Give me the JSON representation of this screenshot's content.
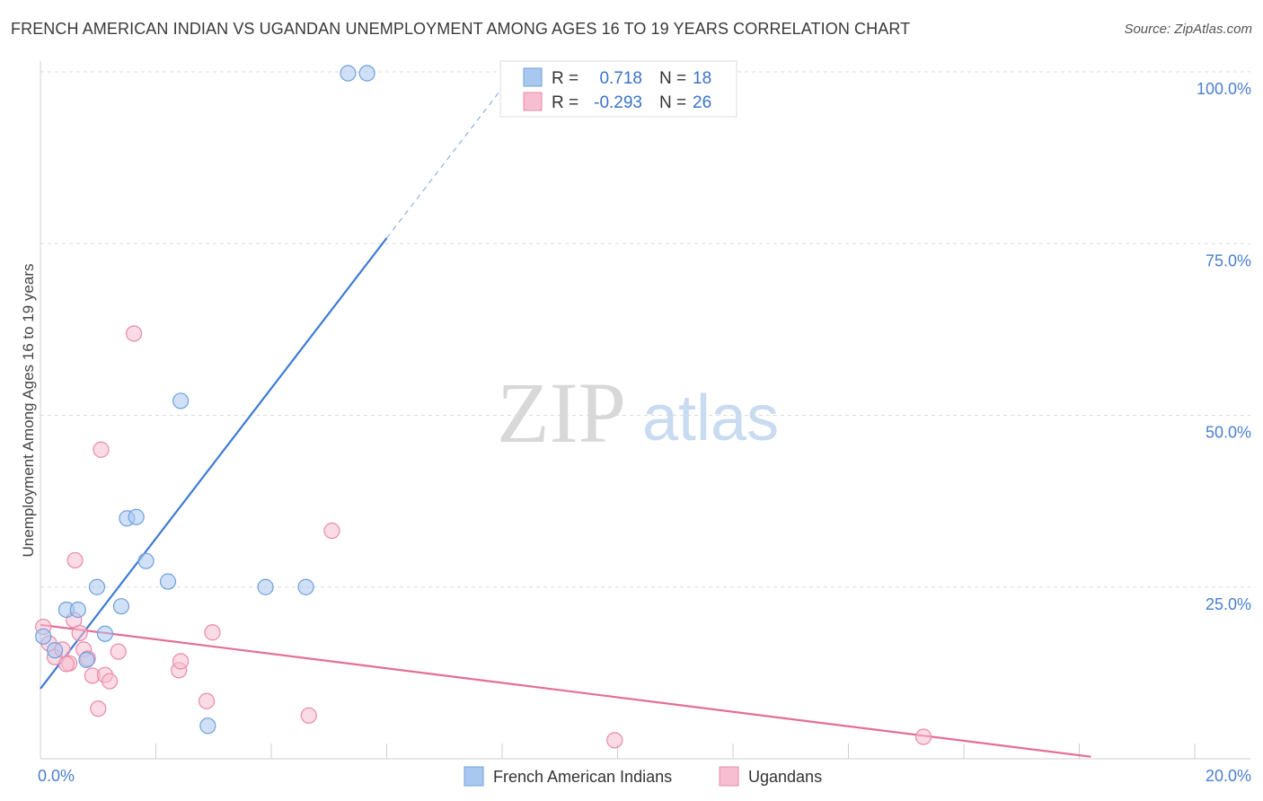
{
  "title": "FRENCH AMERICAN INDIAN VS UGANDAN UNEMPLOYMENT AMONG AGES 16 TO 19 YEARS CORRELATION CHART",
  "source": "Source: ZipAtlas.com",
  "watermark": {
    "zip": "ZIP",
    "atlas": "atlas"
  },
  "colors": {
    "blue_fill": "#a9c8f0",
    "blue_stroke": "#6f9fdc",
    "blue_line": "#3d7bd4",
    "pink_fill": "#f7bdd0",
    "pink_stroke": "#e88aa8",
    "pink_line": "#e46d98",
    "tick_text": "#4a7fd0"
  },
  "stats_legend": [
    {
      "r_label": "R =",
      "r_value": "0.718",
      "n_label": "N =",
      "n_value": "18"
    },
    {
      "r_label": "R =",
      "r_value": "-0.293",
      "n_label": "N =",
      "n_value": "26"
    }
  ],
  "chart_data": {
    "type": "scatter",
    "title": "FRENCH AMERICAN INDIAN VS UGANDAN UNEMPLOYMENT AMONG AGES 16 TO 19 YEARS CORRELATION CHART",
    "xlabel": "",
    "ylabel": "Unemployment Among Ages 16 to 19 years",
    "xlim": [
      0,
      20
    ],
    "ylim": [
      0,
      100
    ],
    "x_tick_labels": [
      "0.0%",
      "20.0%"
    ],
    "y_tick_labels": [
      "100.0%",
      "75.0%",
      "50.0%",
      "25.0%"
    ],
    "y_ticks": [
      100,
      75,
      50,
      25
    ],
    "x_minor_ticks": [
      0,
      2,
      4,
      6,
      8,
      10,
      12,
      14,
      16,
      18,
      20
    ],
    "legend": [
      "French American Indians",
      "Ugandans"
    ],
    "series": [
      {
        "name": "French American Indians",
        "r": 0.718,
        "n": 18,
        "trend": {
          "x0": 0.0,
          "y0": 10.2,
          "x1": 6.0,
          "y1": 75.8,
          "dash_to_x": 8.4,
          "dash_to_y": 102.0
        },
        "points": [
          {
            "x": 0.05,
            "y": 17.8
          },
          {
            "x": 0.25,
            "y": 15.8
          },
          {
            "x": 0.45,
            "y": 21.7
          },
          {
            "x": 0.65,
            "y": 21.7
          },
          {
            "x": 0.8,
            "y": 14.4
          },
          {
            "x": 0.98,
            "y": 25.0
          },
          {
            "x": 1.12,
            "y": 18.2
          },
          {
            "x": 1.4,
            "y": 22.2
          },
          {
            "x": 1.5,
            "y": 35.0
          },
          {
            "x": 1.66,
            "y": 35.2
          },
          {
            "x": 1.83,
            "y": 28.8
          },
          {
            "x": 2.21,
            "y": 25.8
          },
          {
            "x": 2.43,
            "y": 52.1
          },
          {
            "x": 2.9,
            "y": 4.8
          },
          {
            "x": 3.9,
            "y": 25.0
          },
          {
            "x": 4.6,
            "y": 25.0
          },
          {
            "x": 5.33,
            "y": 99.8
          },
          {
            "x": 5.66,
            "y": 99.8
          }
        ]
      },
      {
        "name": "Ugandans",
        "r": -0.293,
        "n": 26,
        "trend": {
          "x0": 0.0,
          "y0": 19.5,
          "x1": 18.2,
          "y1": 0.3
        },
        "points": [
          {
            "x": 0.05,
            "y": 19.2
          },
          {
            "x": 0.15,
            "y": 16.8
          },
          {
            "x": 0.25,
            "y": 14.8
          },
          {
            "x": 0.38,
            "y": 15.9
          },
          {
            "x": 0.5,
            "y": 13.9
          },
          {
            "x": 0.45,
            "y": 13.8
          },
          {
            "x": 0.58,
            "y": 20.2
          },
          {
            "x": 0.6,
            "y": 28.9
          },
          {
            "x": 0.68,
            "y": 18.3
          },
          {
            "x": 0.75,
            "y": 15.9
          },
          {
            "x": 0.82,
            "y": 14.6
          },
          {
            "x": 0.9,
            "y": 12.1
          },
          {
            "x": 1.0,
            "y": 7.3
          },
          {
            "x": 1.05,
            "y": 45.0
          },
          {
            "x": 1.12,
            "y": 12.2
          },
          {
            "x": 1.2,
            "y": 11.3
          },
          {
            "x": 1.35,
            "y": 15.6
          },
          {
            "x": 1.62,
            "y": 61.9
          },
          {
            "x": 2.4,
            "y": 12.9
          },
          {
            "x": 2.43,
            "y": 14.2
          },
          {
            "x": 2.88,
            "y": 8.4
          },
          {
            "x": 2.98,
            "y": 18.4
          },
          {
            "x": 4.65,
            "y": 6.3
          },
          {
            "x": 5.05,
            "y": 33.2
          },
          {
            "x": 9.95,
            "y": 2.7
          },
          {
            "x": 15.3,
            "y": 3.2
          }
        ]
      }
    ]
  }
}
